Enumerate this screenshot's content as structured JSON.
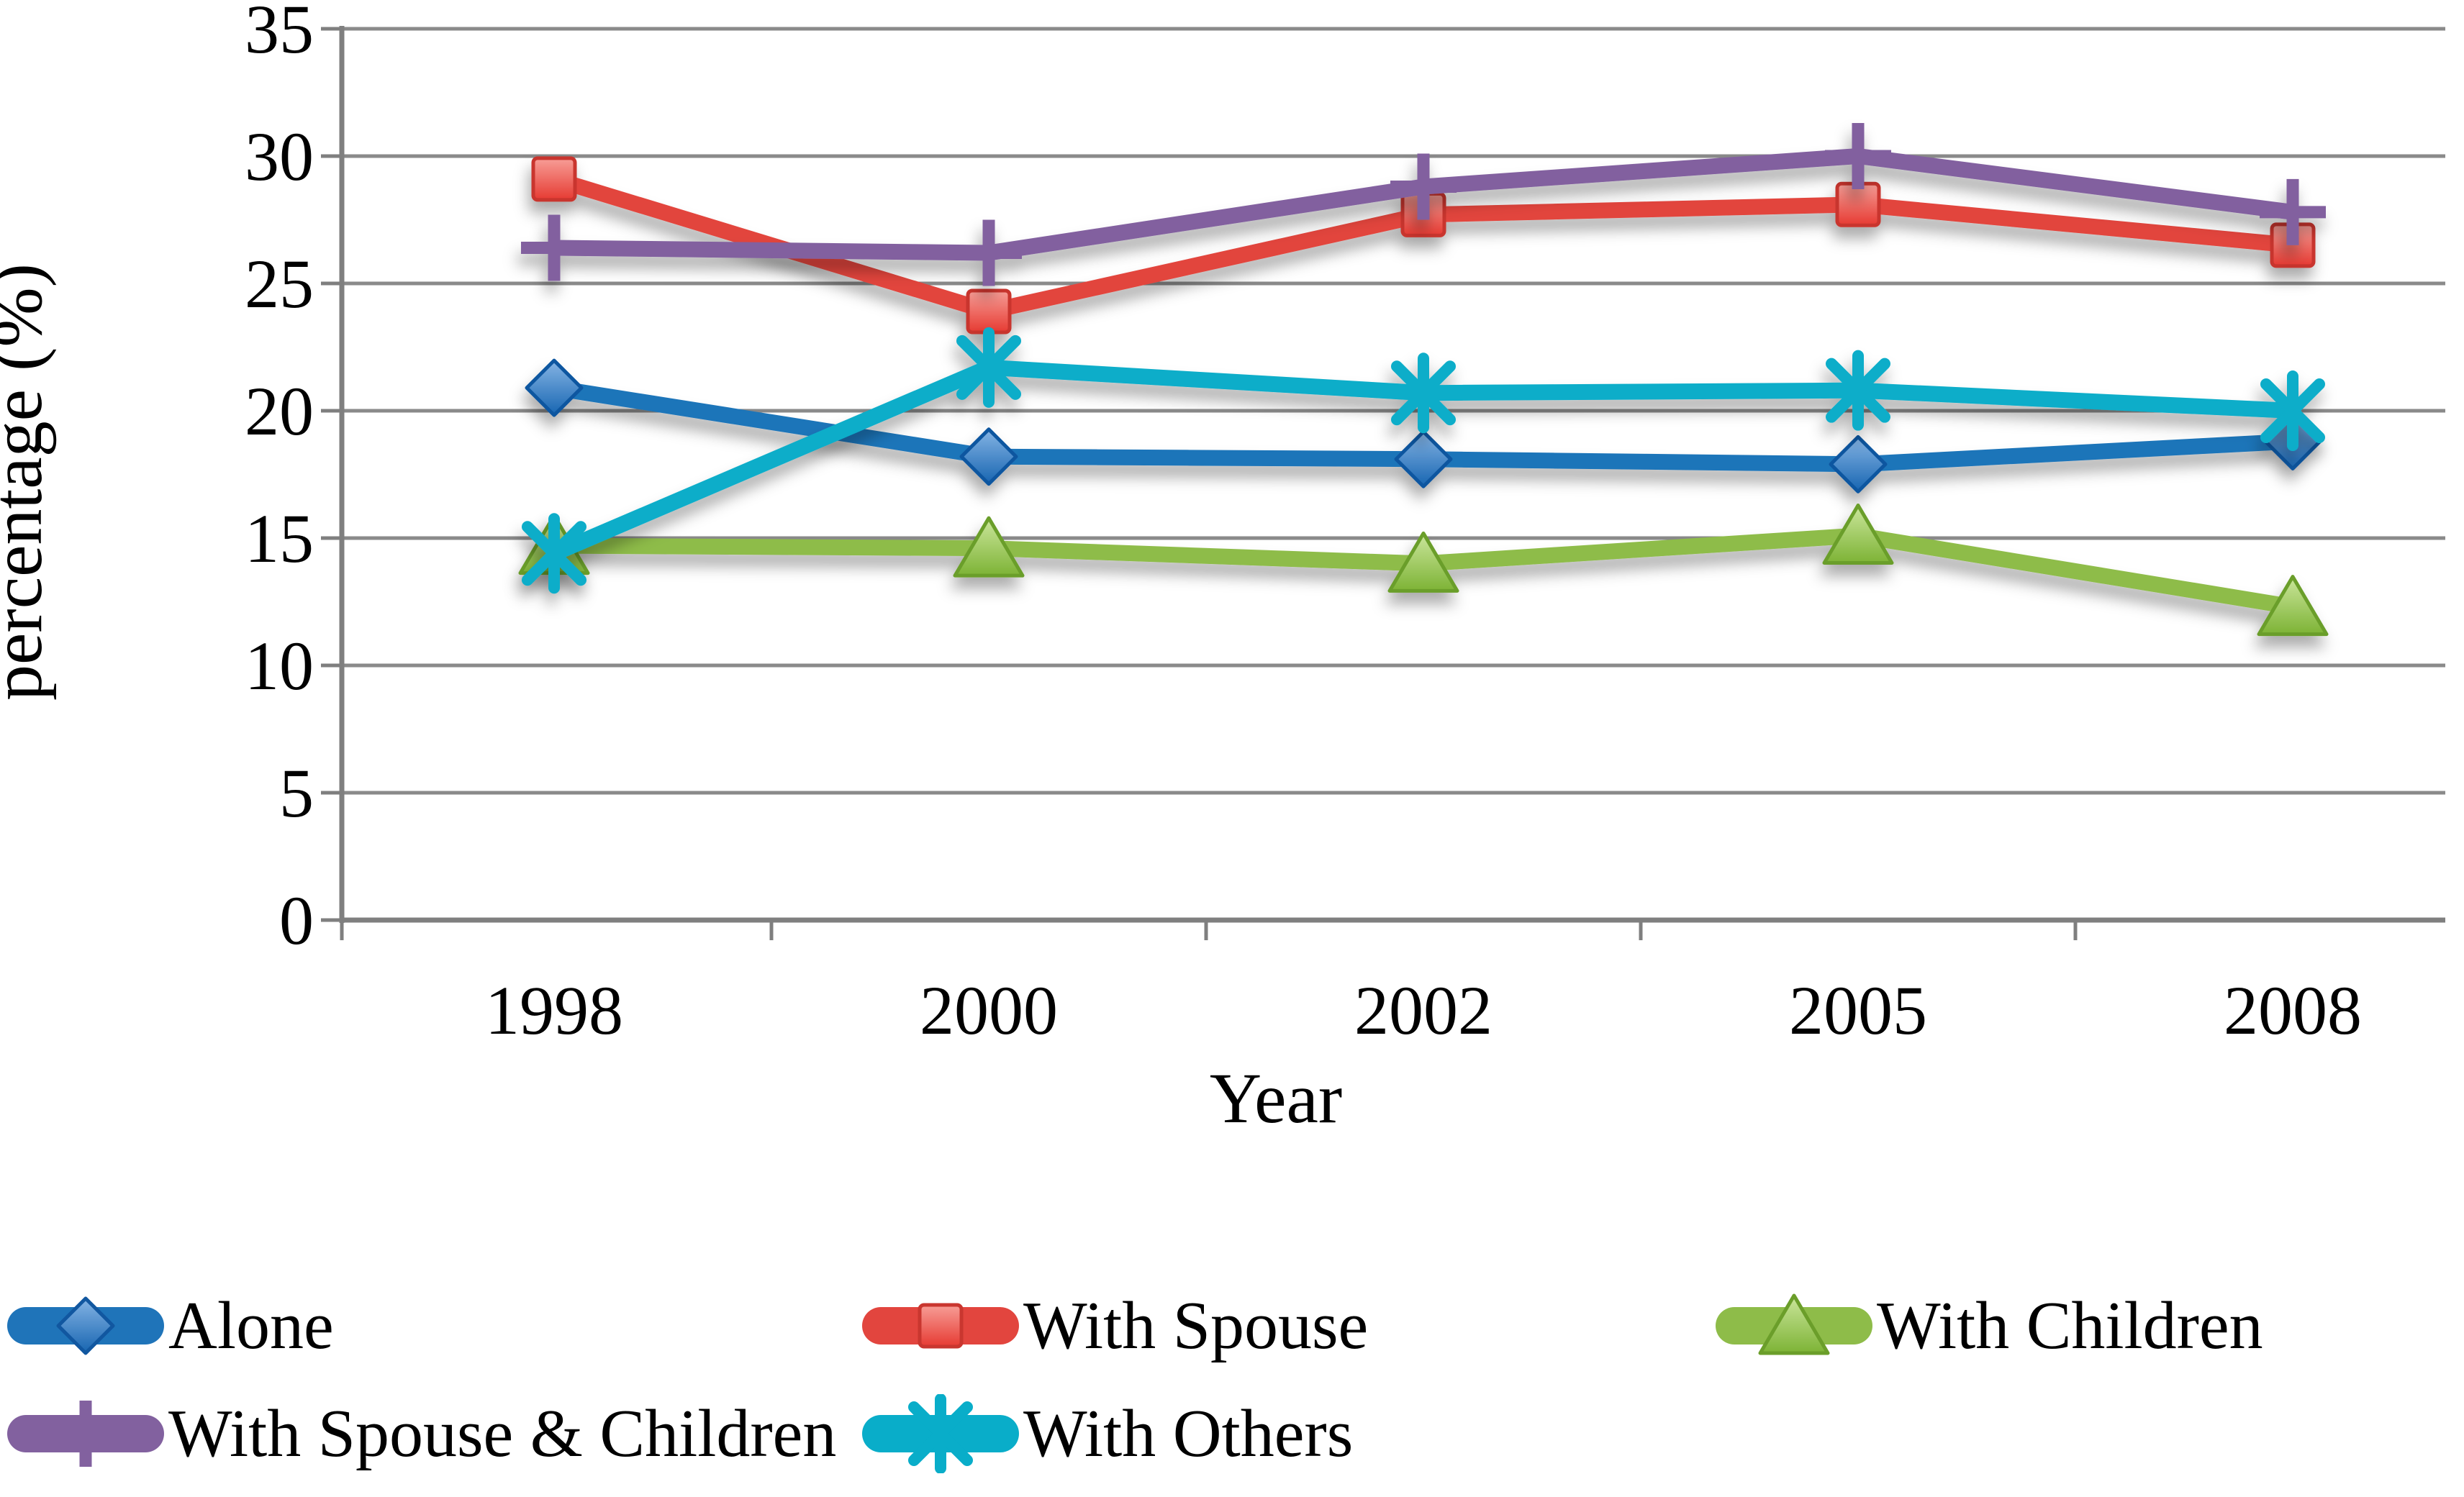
{
  "chart_data": {
    "type": "line",
    "title": "",
    "xlabel": "Year",
    "ylabel": "percentage (%)",
    "categories": [
      "1998",
      "2000",
      "2002",
      "2005",
      "2008"
    ],
    "ylim": [
      0,
      35
    ],
    "ytick_step": 5,
    "yticks": [
      "35",
      "30",
      "25",
      "20",
      "15",
      "10",
      "5",
      "0"
    ],
    "grid": "horizontal gridlines on",
    "legend_position": "bottom, two rows",
    "axis_color": "#7F7F7F",
    "grid_color": "#8A8A8A",
    "series": [
      {
        "name": "Alone",
        "marker": "diamond",
        "color": "#1F74B9",
        "values": [
          20.9,
          18.2,
          18.1,
          17.9,
          18.8
        ]
      },
      {
        "name": "With Spouse",
        "marker": "square",
        "color": "#E2453E",
        "values": [
          29.1,
          23.9,
          27.7,
          28.1,
          26.5
        ]
      },
      {
        "name": "With Children",
        "marker": "triangle",
        "color": "#8EBC49",
        "values": [
          14.7,
          14.6,
          14.0,
          15.1,
          12.3
        ]
      },
      {
        "name": "With Spouse & Children",
        "marker": "plus",
        "color": "#82619F",
        "values": [
          26.4,
          26.2,
          28.8,
          30.0,
          27.8
        ]
      },
      {
        "name": "With Others",
        "marker": "asterisk",
        "color": "#09ADC9",
        "values": [
          14.4,
          21.7,
          20.7,
          20.8,
          20.0
        ]
      }
    ]
  }
}
